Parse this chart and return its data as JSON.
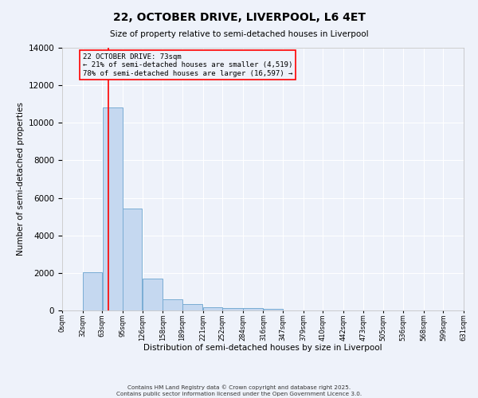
{
  "title": "22, OCTOBER DRIVE, LIVERPOOL, L6 4ET",
  "subtitle": "Size of property relative to semi-detached houses in Liverpool",
  "xlabel": "Distribution of semi-detached houses by size in Liverpool",
  "ylabel": "Number of semi-detached properties",
  "bar_color": "#c5d8f0",
  "bar_edge_color": "#7aadd4",
  "background_color": "#eef2fa",
  "annotation_text": "22 OCTOBER DRIVE: 73sqm\n← 21% of semi-detached houses are smaller (4,519)\n78% of semi-detached houses are larger (16,597) →",
  "red_line_x": 73,
  "bins": [
    0,
    32,
    63,
    95,
    126,
    158,
    189,
    221,
    252,
    284,
    316,
    347,
    379,
    410,
    442,
    473,
    505,
    536,
    568,
    599,
    631
  ],
  "bar_heights": [
    0,
    2050,
    10800,
    5450,
    1700,
    580,
    350,
    190,
    145,
    115,
    95,
    0,
    0,
    0,
    0,
    0,
    0,
    0,
    0,
    0
  ],
  "ylim": [
    0,
    14000
  ],
  "yticks": [
    0,
    2000,
    4000,
    6000,
    8000,
    10000,
    12000,
    14000
  ],
  "footer_line1": "Contains HM Land Registry data © Crown copyright and database right 2025.",
  "footer_line2": "Contains public sector information licensed under the Open Government Licence 3.0."
}
